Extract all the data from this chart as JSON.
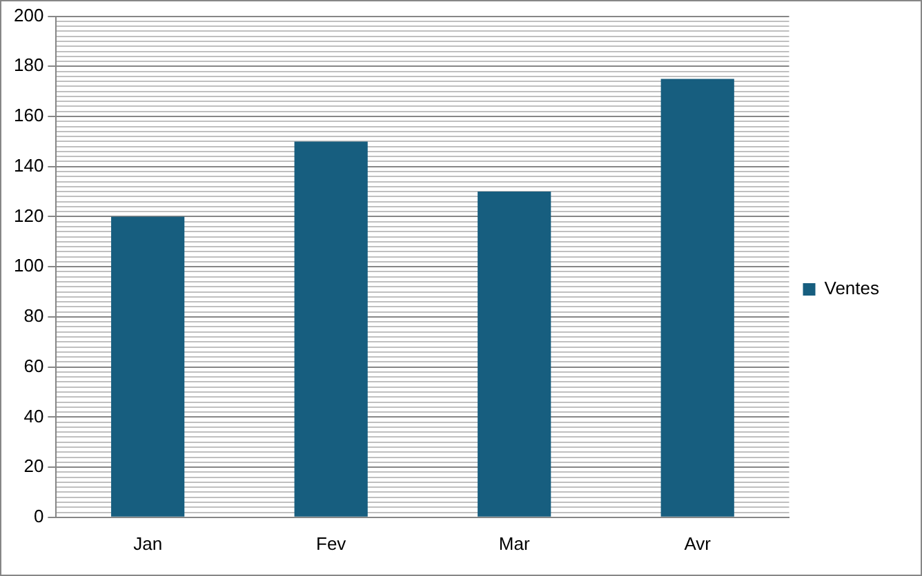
{
  "chart_data": {
    "type": "bar",
    "categories": [
      "Jan",
      "Fev",
      "Mar",
      "Avr"
    ],
    "series": [
      {
        "name": "Ventes",
        "color": "#175e7f",
        "values": [
          120,
          150,
          130,
          175
        ]
      }
    ],
    "ylim": [
      0,
      200
    ],
    "yticks": [
      0,
      {
        "value": 2,
        "label": null
      },
      {
        "value": 4,
        "label": null
      },
      {
        "value": 6,
        "label": null
      },
      {
        "value": 8,
        "label": null
      },
      {
        "value": 10,
        "label": null
      },
      {
        "value": 12,
        "label": null
      },
      {
        "value": 14,
        "label": null
      },
      {
        "value": 16,
        "label": null
      },
      {
        "value": 18,
        "label": null
      },
      20,
      {
        "value": 22,
        "label": null
      },
      {
        "value": 24,
        "label": null
      },
      {
        "value": 26,
        "label": null
      },
      {
        "value": 28,
        "label": null
      },
      {
        "value": 30,
        "label": null
      },
      {
        "value": 32,
        "label": null
      },
      {
        "value": 34,
        "label": null
      },
      {
        "value": 36,
        "label": null
      },
      {
        "value": 38,
        "label": null
      },
      40,
      {
        "value": 42,
        "label": null
      },
      {
        "value": 44,
        "label": null
      },
      {
        "value": 46,
        "label": null
      },
      {
        "value": 48,
        "label": null
      },
      {
        "value": 50,
        "label": null
      },
      {
        "value": 52,
        "label": null
      },
      {
        "value": 54,
        "label": null
      },
      {
        "value": 56,
        "label": null
      },
      {
        "value": 58,
        "label": null
      },
      60,
      {
        "value": 62,
        "label": null
      },
      {
        "value": 64,
        "label": null
      },
      {
        "value": 66,
        "label": null
      },
      {
        "value": 68,
        "label": null
      },
      {
        "value": 70,
        "label": null
      },
      {
        "value": 72,
        "label": null
      },
      {
        "value": 74,
        "label": null
      },
      {
        "value": 76,
        "label": null
      },
      {
        "value": 78,
        "label": null
      },
      80,
      {
        "value": 82,
        "label": null
      },
      {
        "value": 84,
        "label": null
      },
      {
        "value": 86,
        "label": null
      },
      {
        "value": 88,
        "label": null
      },
      {
        "value": 90,
        "label": null
      },
      {
        "value": 92,
        "label": null
      },
      {
        "value": 94,
        "label": null
      },
      {
        "value": 96,
        "label": null
      },
      {
        "value": 98,
        "label": null
      },
      100,
      {
        "value": 102,
        "label": null
      },
      {
        "value": 104,
        "label": null
      },
      {
        "value": 106,
        "label": null
      },
      {
        "value": 108,
        "label": null
      },
      {
        "value": 110,
        "label": null
      },
      {
        "value": 112,
        "label": null
      },
      {
        "value": 114,
        "label": null
      },
      {
        "value": 116,
        "label": null
      },
      {
        "value": 118,
        "label": null
      },
      120,
      {
        "value": 122,
        "label": null
      },
      {
        "value": 124,
        "label": null
      },
      {
        "value": 126,
        "label": null
      },
      {
        "value": 128,
        "label": null
      },
      {
        "value": 130,
        "label": null
      },
      {
        "value": 132,
        "label": null
      },
      {
        "value": 134,
        "label": null
      },
      {
        "value": 136,
        "label": null
      },
      {
        "value": 138,
        "label": null
      },
      140,
      {
        "value": 142,
        "label": null
      },
      {
        "value": 144,
        "label": null
      },
      {
        "value": 146,
        "label": null
      },
      {
        "value": 148,
        "label": null
      },
      {
        "value": 150,
        "label": null
      },
      {
        "value": 152,
        "label": null
      },
      {
        "value": 154,
        "label": null
      },
      {
        "value": 156,
        "label": null
      },
      {
        "value": 158,
        "label": null
      },
      160,
      {
        "value": 162,
        "label": null
      },
      {
        "value": 164,
        "label": null
      },
      {
        "value": 166,
        "label": null
      },
      {
        "value": 168,
        "label": null
      },
      {
        "value": 170,
        "label": null
      },
      {
        "value": 172,
        "label": null
      },
      {
        "value": 174,
        "label": null
      },
      {
        "value": 176,
        "label": null
      },
      {
        "value": 178,
        "label": null
      },
      180,
      {
        "value": 182,
        "label": null
      },
      {
        "value": 184,
        "label": null
      },
      {
        "value": 186,
        "label": null
      },
      {
        "value": 188,
        "label": null
      },
      {
        "value": 190,
        "label": null
      },
      {
        "value": 192,
        "label": null
      },
      {
        "value": 194,
        "label": null
      },
      {
        "value": 196,
        "label": null
      },
      {
        "value": 198,
        "label": null
      },
      200
    ],
    "grid": "y",
    "legend": "right"
  }
}
